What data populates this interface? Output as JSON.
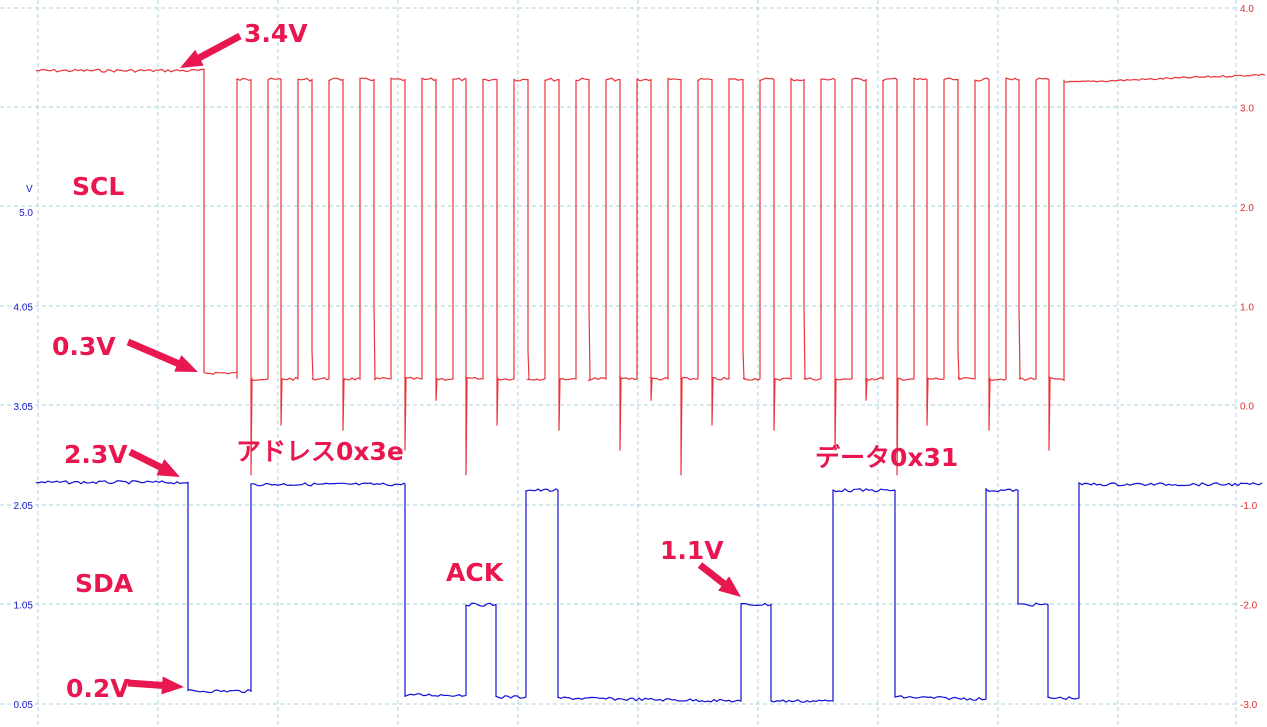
{
  "chart_data": {
    "type": "line",
    "left_axis": {
      "unit": "V",
      "ticks": [
        "5.0",
        "4.05",
        "3.05",
        "2.05",
        "1.05",
        "0.05"
      ],
      "color": "#1a1acc"
    },
    "right_axis": {
      "ticks": [
        "4.0",
        "3.0",
        "2.0",
        "1.0",
        "0.0",
        "-1.0",
        "-2.0",
        "-3.0"
      ],
      "color": "#d83030"
    },
    "grid": true,
    "series": [
      {
        "name": "SCL",
        "color": "#e8333a",
        "axis": "right",
        "x": [
          0,
          168,
          169,
          201,
          202,
          1028,
          1029,
          1229
        ],
        "levels": [
          [
            0,
            3.37
          ],
          [
            168,
            3.37
          ],
          [
            168,
            0.33
          ],
          [
            201,
            0.33
          ],
          [
            201,
            3.3
          ],
          [
            215,
            3.3
          ],
          [
            215,
            0.28
          ],
          [
            232,
            0.28
          ],
          [
            232,
            3.3
          ],
          [
            245,
            3.3
          ],
          [
            245,
            0.28
          ],
          [
            262,
            0.28
          ],
          [
            262,
            3.3
          ],
          [
            1028,
            3.25
          ],
          [
            1028,
            0.22
          ],
          [
            1029,
            3.25
          ],
          [
            1229,
            3.33
          ]
        ]
      },
      {
        "name": "SDA",
        "color": "#1010d8",
        "axis": "left",
        "levels": [
          [
            0,
            2.28
          ],
          [
            152,
            2.28
          ],
          [
            152,
            0.18
          ],
          [
            215,
            0.18
          ],
          [
            215,
            2.26
          ],
          [
            369,
            2.26
          ],
          [
            369,
            0.14
          ],
          [
            430,
            0.14
          ],
          [
            430,
            1.05
          ],
          [
            460,
            1.05
          ],
          [
            460,
            0.12
          ],
          [
            490,
            0.12
          ],
          [
            490,
            2.2
          ],
          [
            522,
            2.2
          ],
          [
            522,
            0.11
          ],
          [
            705,
            0.08
          ],
          [
            705,
            1.05
          ],
          [
            735,
            1.05
          ],
          [
            735,
            0.08
          ],
          [
            797,
            0.08
          ],
          [
            797,
            2.2
          ],
          [
            859,
            2.2
          ],
          [
            859,
            0.12
          ],
          [
            950,
            0.1
          ],
          [
            950,
            2.2
          ],
          [
            982,
            2.2
          ],
          [
            982,
            1.05
          ],
          [
            1012,
            1.05
          ],
          [
            1012,
            0.11
          ],
          [
            1043,
            0.11
          ],
          [
            1043,
            2.26
          ],
          [
            1229,
            2.26
          ]
        ]
      }
    ],
    "annotations": [
      {
        "id": "scl-high",
        "text": "3.4V"
      },
      {
        "id": "scl-low",
        "text": "0.3V"
      },
      {
        "id": "sda-high",
        "text": "2.3V"
      },
      {
        "id": "sda-low",
        "text": "0.2V"
      },
      {
        "id": "address",
        "text": "アドレス0x3e"
      },
      {
        "id": "ack",
        "text": "ACK"
      },
      {
        "id": "mid",
        "text": "1.1V"
      },
      {
        "id": "data",
        "text": "データ0x31"
      },
      {
        "id": "scl-label",
        "text": "SCL"
      },
      {
        "id": "sda-label",
        "text": "SDA"
      }
    ]
  }
}
